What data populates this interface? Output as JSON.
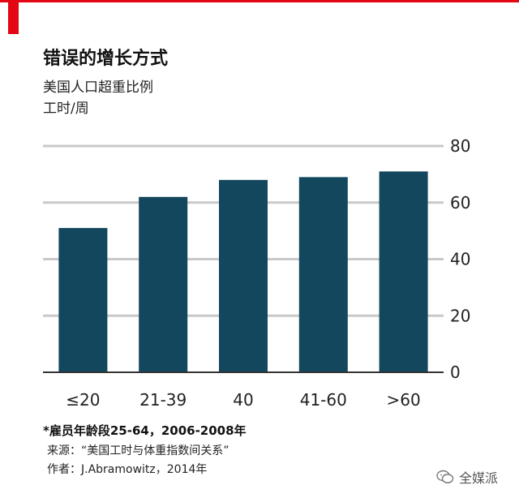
{
  "header": {
    "title": "错误的增长方式",
    "subtitle": "美国人口超重比例",
    "unit_label": "工时/周"
  },
  "chart_data": {
    "type": "bar",
    "categories": [
      "≤20",
      "21-39",
      "40",
      "41-60",
      ">60"
    ],
    "values": [
      51,
      62,
      68,
      69,
      71
    ],
    "ylim": [
      0,
      80
    ],
    "yticks": [
      0,
      20,
      40,
      60,
      80
    ],
    "ytick_labels": [
      "0",
      "20",
      "40",
      "60",
      "80"
    ],
    "y_axis_side": "right",
    "grid": true,
    "bar_color": "#12475e",
    "grid_color": "#c9c9c9",
    "axis_color": "#333333"
  },
  "footer": {
    "note": "*雇员年龄段25-64，2006-2008年",
    "source": "来源：“美国工时与体重指数间关系”",
    "author": "作者：J.Abramowitz，2014年"
  },
  "watermark": {
    "text": "全媒派",
    "icon": "wechat-logo-icon"
  },
  "colors": {
    "accent": "#e30613",
    "bar": "#12475e"
  }
}
